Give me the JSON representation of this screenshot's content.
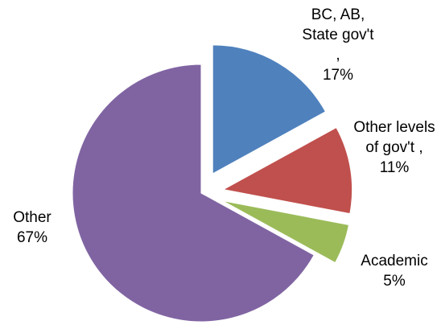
{
  "chart_data": {
    "type": "pie",
    "categories": [
      "BC, AB, State gov't ,",
      "Other levels of gov't ,",
      "Academic",
      "Other"
    ],
    "values": [
      17,
      11,
      5,
      67
    ],
    "value_labels": [
      "17%",
      "11%",
      "5%",
      "67%"
    ],
    "colors": [
      "#4f81bd",
      "#c0504d",
      "#9bbb59",
      "#8064a2"
    ],
    "exploded": [
      true,
      true,
      true,
      false
    ]
  }
}
